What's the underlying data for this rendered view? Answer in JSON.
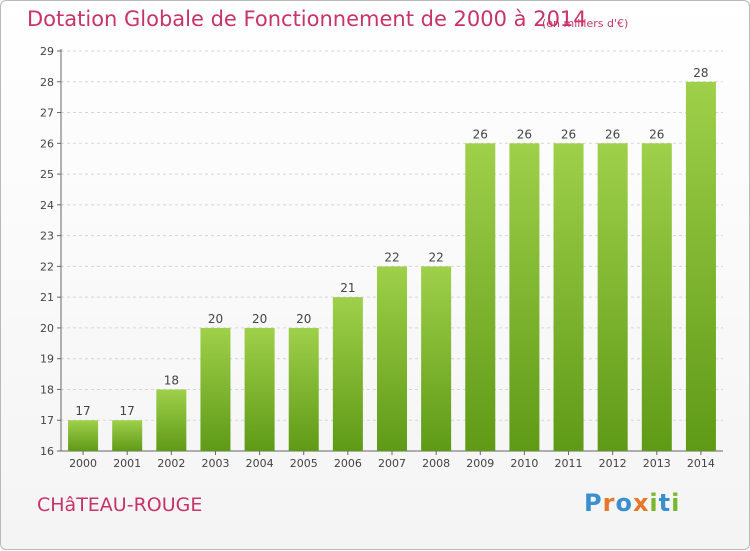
{
  "header": {
    "title": "Dotation Globale de Fonctionnement de 2000 à 2014",
    "subtitle": "(en milliers d'€)"
  },
  "footer": {
    "commune": "CHâTEAU-ROUGE",
    "logo_text": "Proxiti"
  },
  "colors": {
    "title": "#c8336a",
    "bar_top": "#9fd04a",
    "bar_bottom": "#5f9a17",
    "grid": "#d6d6d6",
    "logo_letters": [
      "#3a8fd0",
      "#e5782a",
      "#3a8fd0",
      "#e5782a",
      "#77b82e",
      "#3a8fd0",
      "#77b82e"
    ]
  },
  "chart_data": {
    "type": "bar",
    "title": "Dotation Globale de Fonctionnement de 2000 à 2014",
    "subtitle": "(en milliers d'€)",
    "xlabel": "",
    "ylabel": "",
    "categories": [
      "2000",
      "2001",
      "2002",
      "2003",
      "2004",
      "2005",
      "2006",
      "2007",
      "2008",
      "2009",
      "2010",
      "2011",
      "2012",
      "2013",
      "2014"
    ],
    "values": [
      17,
      17,
      18,
      20,
      20,
      20,
      21,
      22,
      22,
      26,
      26,
      26,
      26,
      26,
      28
    ],
    "ylim": [
      16,
      29
    ],
    "yticks": [
      16,
      17,
      18,
      19,
      20,
      21,
      22,
      23,
      24,
      25,
      26,
      27,
      28,
      29
    ],
    "grid": true,
    "data_labels": true
  }
}
